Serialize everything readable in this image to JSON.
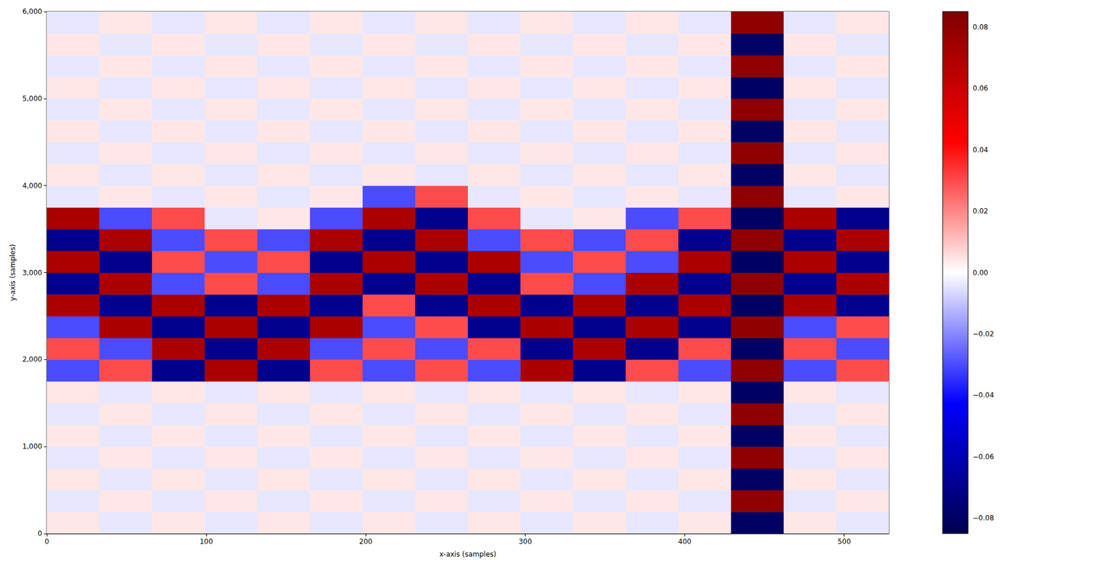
{
  "chart_data": {
    "type": "heatmap",
    "x_label": "x-axis (samples)",
    "y_label": "y-axis (samples)",
    "xlim": [
      0,
      528
    ],
    "xticks": [
      0,
      100,
      200,
      300,
      400,
      500
    ],
    "ylim": [
      0,
      6000
    ],
    "yticks": [
      0,
      1000,
      2000,
      3000,
      4000,
      5000,
      6000
    ],
    "x_edges": [
      0,
      33,
      66,
      99,
      132,
      165,
      198,
      231,
      264,
      297,
      330,
      363,
      396,
      429,
      462,
      495,
      528
    ],
    "y_edges": [
      0,
      250,
      500,
      750,
      1000,
      1250,
      1500,
      1750,
      2000,
      2250,
      2500,
      2750,
      3000,
      3250,
      3500,
      3750,
      4000,
      4250,
      4500,
      4750,
      5000,
      5250,
      5500,
      5750,
      6000
    ],
    "values": [
      [
        0.004,
        -0.004,
        0.004,
        -0.004,
        0.004,
        -0.004,
        0.004,
        -0.004,
        0.004,
        -0.004,
        0.004,
        -0.004,
        0.004,
        -0.08,
        0.004,
        -0.004
      ],
      [
        -0.004,
        0.004,
        -0.004,
        0.004,
        -0.004,
        0.004,
        -0.004,
        0.004,
        -0.004,
        0.004,
        -0.004,
        0.004,
        -0.004,
        0.08,
        -0.004,
        0.004
      ],
      [
        0.004,
        -0.004,
        0.004,
        -0.004,
        0.004,
        -0.004,
        0.004,
        -0.004,
        0.004,
        -0.004,
        0.004,
        -0.004,
        0.004,
        -0.08,
        0.004,
        -0.004
      ],
      [
        -0.004,
        0.004,
        -0.004,
        0.004,
        -0.004,
        0.004,
        -0.004,
        0.004,
        -0.004,
        0.004,
        -0.004,
        0.004,
        -0.004,
        0.08,
        -0.004,
        0.004
      ],
      [
        0.004,
        -0.004,
        0.004,
        -0.004,
        0.004,
        -0.004,
        0.004,
        -0.004,
        0.004,
        -0.004,
        0.004,
        -0.004,
        0.004,
        -0.08,
        0.004,
        -0.004
      ],
      [
        -0.004,
        0.004,
        -0.004,
        0.004,
        -0.004,
        0.004,
        -0.004,
        0.004,
        -0.004,
        0.004,
        -0.004,
        0.004,
        -0.004,
        0.08,
        -0.004,
        0.004
      ],
      [
        0.004,
        -0.004,
        0.004,
        -0.004,
        0.004,
        -0.004,
        0.004,
        -0.004,
        0.004,
        -0.004,
        0.004,
        -0.004,
        0.004,
        -0.08,
        0.004,
        -0.004
      ],
      [
        -0.03,
        0.03,
        -0.07,
        0.07,
        -0.07,
        0.03,
        -0.03,
        0.03,
        -0.03,
        0.07,
        -0.07,
        0.03,
        -0.03,
        0.08,
        -0.03,
        0.03
      ],
      [
        0.03,
        -0.03,
        0.07,
        -0.07,
        0.07,
        -0.03,
        0.03,
        -0.03,
        0.03,
        -0.07,
        0.07,
        -0.07,
        0.03,
        -0.08,
        0.03,
        -0.03
      ],
      [
        -0.03,
        0.07,
        -0.07,
        0.07,
        -0.07,
        0.07,
        -0.03,
        0.03,
        -0.07,
        0.07,
        -0.07,
        0.07,
        -0.07,
        0.08,
        -0.03,
        0.03
      ],
      [
        0.07,
        -0.07,
        0.07,
        -0.07,
        0.07,
        -0.07,
        0.03,
        -0.07,
        0.07,
        -0.07,
        0.07,
        -0.07,
        0.07,
        -0.08,
        0.07,
        -0.07
      ],
      [
        -0.07,
        0.07,
        -0.03,
        0.03,
        -0.03,
        0.07,
        -0.07,
        0.07,
        -0.07,
        0.03,
        -0.03,
        0.07,
        -0.07,
        0.08,
        -0.07,
        0.07
      ],
      [
        0.07,
        -0.07,
        0.03,
        -0.03,
        0.03,
        -0.07,
        0.07,
        -0.07,
        0.07,
        -0.03,
        0.03,
        -0.03,
        0.07,
        -0.08,
        0.07,
        -0.07
      ],
      [
        -0.07,
        0.07,
        -0.03,
        0.03,
        -0.03,
        0.07,
        -0.07,
        0.07,
        -0.03,
        0.03,
        -0.03,
        0.03,
        -0.07,
        0.08,
        -0.07,
        0.07
      ],
      [
        0.07,
        -0.03,
        0.03,
        -0.004,
        0.004,
        -0.03,
        0.07,
        -0.07,
        0.03,
        -0.004,
        0.004,
        -0.03,
        0.03,
        -0.08,
        0.07,
        -0.07
      ],
      [
        -0.004,
        0.004,
        -0.004,
        0.004,
        -0.004,
        0.004,
        -0.03,
        0.03,
        -0.004,
        0.004,
        -0.004,
        0.004,
        -0.004,
        0.08,
        -0.004,
        0.004
      ],
      [
        0.004,
        -0.004,
        0.004,
        -0.004,
        0.004,
        -0.004,
        0.004,
        -0.004,
        0.004,
        -0.004,
        0.004,
        -0.004,
        0.004,
        -0.08,
        0.004,
        -0.004
      ],
      [
        -0.004,
        0.004,
        -0.004,
        0.004,
        -0.004,
        0.004,
        -0.004,
        0.004,
        -0.004,
        0.004,
        -0.004,
        0.004,
        -0.004,
        0.08,
        -0.004,
        0.004
      ],
      [
        0.004,
        -0.004,
        0.004,
        -0.004,
        0.004,
        -0.004,
        0.004,
        -0.004,
        0.004,
        -0.004,
        0.004,
        -0.004,
        0.004,
        -0.08,
        0.004,
        -0.004
      ],
      [
        -0.004,
        0.004,
        -0.004,
        0.004,
        -0.004,
        0.004,
        -0.004,
        0.004,
        -0.004,
        0.004,
        -0.004,
        0.004,
        -0.004,
        0.08,
        -0.004,
        0.004
      ],
      [
        0.004,
        -0.004,
        0.004,
        -0.004,
        0.004,
        -0.004,
        0.004,
        -0.004,
        0.004,
        -0.004,
        0.004,
        -0.004,
        0.004,
        -0.08,
        0.004,
        -0.004
      ],
      [
        -0.004,
        0.004,
        -0.004,
        0.004,
        -0.004,
        0.004,
        -0.004,
        0.004,
        -0.004,
        0.004,
        -0.004,
        0.004,
        -0.004,
        0.08,
        -0.004,
        0.004
      ],
      [
        0.004,
        -0.004,
        0.004,
        -0.004,
        0.004,
        -0.004,
        0.004,
        -0.004,
        0.004,
        -0.004,
        0.004,
        -0.004,
        0.004,
        -0.08,
        0.004,
        -0.004
      ],
      [
        -0.004,
        0.004,
        -0.004,
        0.004,
        -0.004,
        0.004,
        -0.004,
        0.004,
        -0.004,
        0.004,
        -0.004,
        0.004,
        -0.004,
        0.08,
        -0.004,
        0.004
      ]
    ],
    "colorbar_range": [
      -0.085,
      0.085
    ],
    "colorbar_ticks": [
      {
        "value": -0.08,
        "label": "−0.08"
      },
      {
        "value": -0.06,
        "label": "−0.06"
      },
      {
        "value": -0.04,
        "label": "−0.04"
      },
      {
        "value": -0.02,
        "label": "−0.02"
      },
      {
        "value": 0,
        "label": "0.00"
      },
      {
        "value": 0.02,
        "label": "0.02"
      },
      {
        "value": 0.04,
        "label": "0.04"
      },
      {
        "value": 0.06,
        "label": "0.06"
      },
      {
        "value": 0.08,
        "label": "0.08"
      }
    ]
  }
}
